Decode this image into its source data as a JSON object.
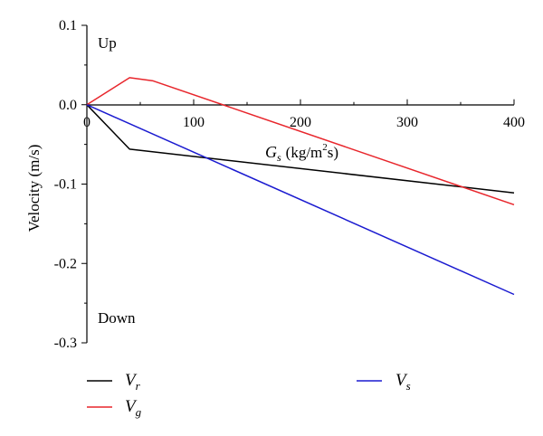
{
  "chart_data": {
    "type": "line",
    "title": "",
    "ylabel": "Velocity (m/s)",
    "xlabel": {
      "symbol": "G",
      "subscript": "s",
      "unit_pre": "(kg/m",
      "unit_sup": "2",
      "unit_post": "s)"
    },
    "xlim": [
      0,
      400
    ],
    "ylim": [
      -0.3,
      0.1
    ],
    "x_ticks": [
      {
        "value": 0,
        "label": "0"
      },
      {
        "value": 100,
        "label": "100"
      },
      {
        "value": 200,
        "label": "200"
      },
      {
        "value": 300,
        "label": "300"
      },
      {
        "value": 400,
        "label": "400"
      }
    ],
    "y_ticks": [
      {
        "value": 0.1,
        "label": "0.1"
      },
      {
        "value": 0.0,
        "label": "0.0"
      },
      {
        "value": -0.1,
        "label": "-0.1"
      },
      {
        "value": -0.2,
        "label": "-0.2"
      },
      {
        "value": -0.3,
        "label": "-0.3"
      }
    ],
    "annotations": {
      "up": "Up",
      "down": "Down"
    },
    "grid": false,
    "legend_position": "bottom",
    "series": [
      {
        "name": "V",
        "subscript": "r",
        "color": "#000000",
        "points": [
          [
            0,
            0.0
          ],
          [
            40,
            -0.056
          ],
          [
            400,
            -0.111
          ]
        ]
      },
      {
        "name": "V",
        "subscript": "g",
        "color": "#e8262c",
        "points": [
          [
            0,
            0.0
          ],
          [
            40,
            0.034
          ],
          [
            62,
            0.03
          ],
          [
            400,
            -0.126
          ]
        ]
      },
      {
        "name": "V",
        "subscript": "s",
        "color": "#1a1ad0",
        "points": [
          [
            0,
            0.0
          ],
          [
            400,
            -0.239
          ]
        ]
      }
    ]
  }
}
